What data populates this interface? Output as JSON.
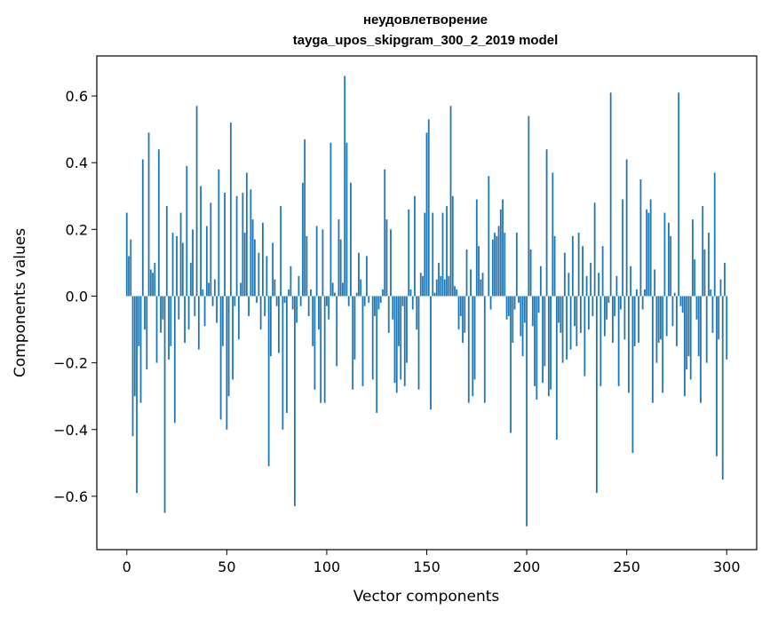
{
  "chart_data": {
    "type": "bar",
    "title_lines": [
      "неудовлетворение",
      "tayga_upos_skipgram_300_2_2019 model"
    ],
    "xlabel": "Vector components",
    "ylabel": "Components values",
    "xlim": [
      -15,
      315
    ],
    "ylim": [
      -0.76,
      0.72
    ],
    "xticks": [
      0,
      50,
      100,
      150,
      200,
      250,
      300
    ],
    "yticks": [
      -0.6,
      -0.4,
      -0.2,
      0.0,
      0.2,
      0.4,
      0.6
    ],
    "ytick_labels": [
      "−0.6",
      "−0.4",
      "−0.2",
      "0.0",
      "0.2",
      "0.4",
      "0.6"
    ],
    "bar_color": "#1f77b4",
    "values": [
      0.25,
      0.12,
      0.17,
      -0.42,
      -0.3,
      -0.59,
      -0.15,
      -0.32,
      0.41,
      -0.1,
      -0.22,
      0.49,
      0.08,
      0.07,
      0.1,
      -0.2,
      0.44,
      -0.11,
      -0.07,
      -0.65,
      0.27,
      -0.19,
      -0.15,
      0.19,
      -0.38,
      0.18,
      -0.07,
      0.25,
      0.16,
      -0.14,
      0.39,
      -0.1,
      0.1,
      0.2,
      -0.06,
      0.57,
      -0.16,
      0.33,
      0.02,
      -0.09,
      0.21,
      0.04,
      0.28,
      -0.03,
      0.05,
      -0.08,
      0.38,
      -0.37,
      -0.15,
      0.31,
      -0.4,
      -0.3,
      0.52,
      -0.25,
      -0.03,
      0.3,
      -0.13,
      0.04,
      0.31,
      0.19,
      0.37,
      -0.06,
      0.32,
      0.23,
      0.17,
      -0.02,
      0.13,
      -0.1,
      0.22,
      -0.06,
      0.12,
      -0.51,
      -0.18,
      0.16,
      0.05,
      -0.03,
      -0.17,
      0.27,
      -0.4,
      -0.02,
      -0.35,
      0.02,
      0.09,
      -0.04,
      -0.63,
      -0.08,
      0.06,
      -0.03,
      0.34,
      0.47,
      0.18,
      -0.06,
      0.02,
      -0.15,
      -0.28,
      0.21,
      -0.1,
      -0.32,
      0.2,
      -0.32,
      -0.03,
      -0.07,
      0.46,
      0.04,
      0.01,
      -0.21,
      0.23,
      0.17,
      0.04,
      0.66,
      0.46,
      -0.03,
      0.34,
      -0.28,
      -0.19,
      0.01,
      0.13,
      0.05,
      -0.27,
      -0.03,
      0.12,
      -0.02,
      0.0,
      -0.25,
      -0.06,
      -0.35,
      -0.04,
      -0.02,
      0.02,
      0.38,
      0.23,
      -0.11,
      0.2,
      -0.07,
      -0.26,
      -0.29,
      -0.15,
      -0.25,
      -0.03,
      -0.27,
      -0.2,
      0.26,
      0.02,
      -0.04,
      0.3,
      -0.1,
      -0.28,
      0.07,
      0.06,
      0.25,
      0.49,
      0.53,
      -0.34,
      0.25,
      0.01,
      0.05,
      0.1,
      0.06,
      0.25,
      0.05,
      0.27,
      0.06,
      0.57,
      0.3,
      0.03,
      0.02,
      -0.1,
      -0.06,
      -0.14,
      -0.11,
      0.14,
      -0.32,
      0.08,
      -0.3,
      -0.25,
      0.29,
      0.15,
      0.05,
      0.07,
      -0.32,
      0.0,
      0.36,
      -0.04,
      0.17,
      0.19,
      0.18,
      0.21,
      0.26,
      0.29,
      0.19,
      -0.07,
      -0.06,
      -0.41,
      -0.14,
      -0.04,
      0.19,
      -0.02,
      -0.12,
      -0.18,
      -0.08,
      -0.69,
      0.54,
      0.14,
      -0.09,
      -0.27,
      -0.31,
      -0.05,
      0.09,
      -0.26,
      -0.21,
      0.44,
      -0.3,
      -0.28,
      0.37,
      0.18,
      -0.43,
      -0.08,
      -0.11,
      -0.2,
      0.13,
      -0.19,
      0.07,
      -0.16,
      0.18,
      -0.09,
      -0.15,
      0.19,
      -0.11,
      0.15,
      -0.24,
      0.06,
      -0.1,
      0.1,
      -0.06,
      0.28,
      -0.59,
      0.07,
      -0.27,
      0.15,
      -0.12,
      -0.07,
      -0.02,
      0.61,
      -0.14,
      -0.06,
      0.06,
      -0.27,
      -0.04,
      0.29,
      -0.13,
      0.41,
      -0.29,
      0.09,
      -0.47,
      -0.15,
      0.02,
      -0.14,
      0.35,
      -0.04,
      0.02,
      0.26,
      0.25,
      0.29,
      -0.32,
      0.08,
      -0.2,
      -0.14,
      -0.13,
      -0.29,
      0.25,
      -0.12,
      0.22,
      0.18,
      -0.09,
      0.01,
      -0.15,
      0.61,
      -0.03,
      -0.05,
      -0.3,
      -0.22,
      -0.18,
      -0.25,
      0.23,
      0.11,
      -0.07,
      -0.18,
      -0.32,
      0.27,
      0.14,
      -0.2,
      0.19,
      0.02,
      -0.11,
      0.37,
      -0.48,
      -0.13,
      0.05,
      -0.55,
      0.1,
      -0.19
    ]
  }
}
